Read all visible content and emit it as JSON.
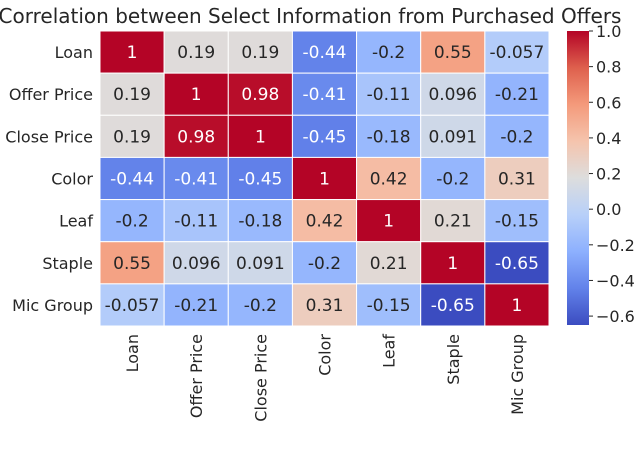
{
  "chart_data": {
    "type": "heatmap",
    "title": "Correlation between Select Information from Purchased Offers",
    "row_labels": [
      "Loan",
      "Offer Price",
      "Close Price",
      "Color",
      "Leaf",
      "Staple",
      "Mic Group"
    ],
    "col_labels": [
      "Loan",
      "Offer Price",
      "Close Price",
      "Color",
      "Leaf",
      "Staple",
      "Mic Group"
    ],
    "values": [
      [
        1,
        0.19,
        0.19,
        -0.44,
        -0.2,
        0.55,
        -0.057
      ],
      [
        0.19,
        1,
        0.98,
        -0.41,
        -0.11,
        0.096,
        -0.21
      ],
      [
        0.19,
        0.98,
        1,
        -0.45,
        -0.18,
        0.091,
        -0.2
      ],
      [
        -0.44,
        -0.41,
        -0.45,
        1,
        0.42,
        -0.2,
        0.31
      ],
      [
        -0.2,
        -0.11,
        -0.18,
        0.42,
        1,
        0.21,
        -0.15
      ],
      [
        0.55,
        0.096,
        0.091,
        -0.2,
        0.21,
        1,
        -0.65
      ],
      [
        -0.057,
        -0.21,
        -0.2,
        0.31,
        -0.15,
        -0.65,
        1
      ]
    ],
    "annotations": [
      [
        "1",
        "0.19",
        "0.19",
        "-0.44",
        "-0.2",
        "0.55",
        "-0.057"
      ],
      [
        "0.19",
        "1",
        "0.98",
        "-0.41",
        "-0.11",
        "0.096",
        "-0.21"
      ],
      [
        "0.19",
        "0.98",
        "1",
        "-0.45",
        "-0.18",
        "0.091",
        "-0.2"
      ],
      [
        "-0.44",
        "-0.41",
        "-0.45",
        "1",
        "0.42",
        "-0.2",
        "0.31"
      ],
      [
        "-0.2",
        "-0.11",
        "-0.18",
        "0.42",
        "1",
        "0.21",
        "-0.15"
      ],
      [
        "0.55",
        "0.096",
        "0.091",
        "-0.2",
        "0.21",
        "1",
        "-0.65"
      ],
      [
        "-0.057",
        "-0.21",
        "-0.2",
        "0.31",
        "-0.15",
        "-0.65",
        "1"
      ]
    ],
    "colormap": "coolwarm",
    "vmin": -0.65,
    "vmax": 1.0,
    "colorbar": {
      "ticks": [
        1.0,
        0.8,
        0.6,
        0.4,
        0.2,
        0.0,
        -0.2,
        -0.4,
        -0.6
      ],
      "tick_labels": [
        "1.0",
        "0.8",
        "0.6",
        "0.4",
        "0.2",
        "0.0",
        "−0.2",
        "−0.4",
        "−0.6"
      ]
    },
    "colors": {
      "cool_end": "#3b4cc0",
      "mid": "#dddddd",
      "warm_end": "#b40426",
      "cell_border": "#ffffff",
      "dark_text": "#262626",
      "light_text": "#ffffff"
    },
    "grid": false
  }
}
